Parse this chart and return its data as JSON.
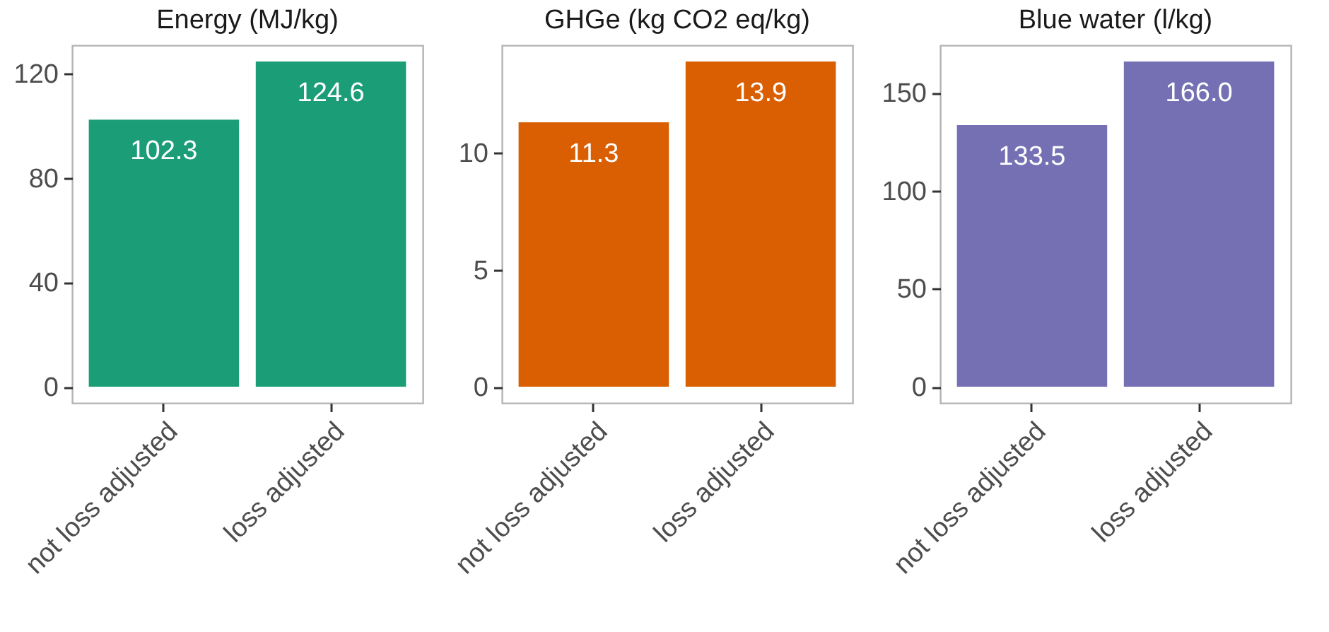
{
  "chart_data": [
    {
      "type": "bar",
      "title": "Energy (MJ/kg)",
      "categories": [
        "not loss adjusted",
        "loss adjusted"
      ],
      "values": [
        102.3,
        124.6
      ],
      "value_labels": [
        "102.3",
        "124.6"
      ],
      "color": "#1b9e77",
      "ylim": [
        -6.23,
        130.83
      ],
      "yticks": [
        0,
        40,
        80,
        120
      ]
    },
    {
      "type": "bar",
      "title": "GHGe (kg CO2 eq/kg)",
      "categories": [
        "not loss adjusted",
        "loss adjusted"
      ],
      "values": [
        11.3,
        13.9
      ],
      "value_labels": [
        "11.3",
        "13.9"
      ],
      "color": "#d95f02",
      "ylim": [
        -0.695,
        14.595
      ],
      "yticks": [
        0,
        5,
        10
      ]
    },
    {
      "type": "bar",
      "title": "Blue water (l/kg)",
      "categories": [
        "not loss adjusted",
        "loss adjusted"
      ],
      "values": [
        133.5,
        166.0
      ],
      "value_labels": [
        "133.5",
        "166.0"
      ],
      "color": "#7570b3",
      "ylim": [
        -8.3,
        174.3
      ],
      "yticks": [
        0,
        50,
        100,
        150
      ]
    }
  ]
}
